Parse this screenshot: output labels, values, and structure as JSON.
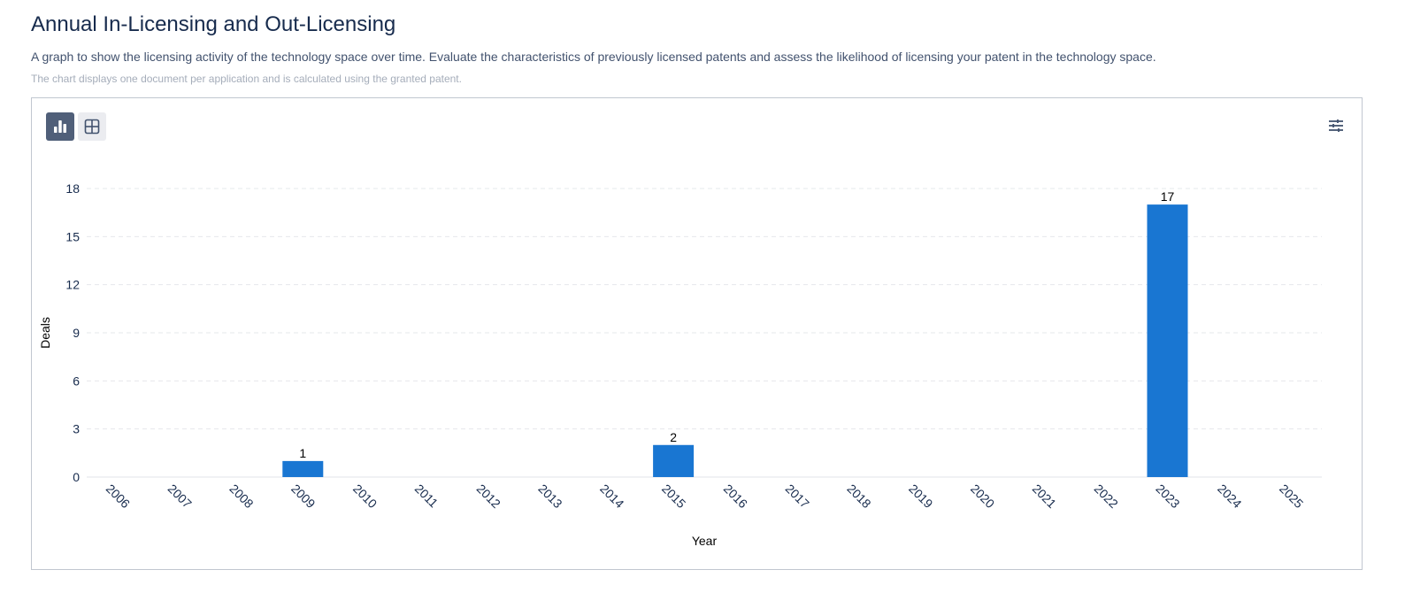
{
  "page": {
    "title": "Annual In-Licensing and Out-Licensing",
    "description": "A graph to show the licensing activity of the technology space over time. Evaluate the characteristics of previously licensed patents and assess the likelihood of licensing your patent in the technology space.",
    "note": "The chart displays one document per application and is calculated using the granted patent."
  },
  "toolbar": {
    "chart_view_icon": "bar-chart-icon",
    "table_view_icon": "table-grid-icon",
    "settings_icon": "sliders-icon",
    "active_view": "chart"
  },
  "colors": {
    "bar": "#1976d2",
    "grid": "#e6e8eb",
    "active_toggle": "#505f79",
    "inactive_toggle": "#ebecf0"
  },
  "chart_data": {
    "type": "bar",
    "categories": [
      "2006",
      "2007",
      "2008",
      "2009",
      "2010",
      "2011",
      "2012",
      "2013",
      "2014",
      "2015",
      "2016",
      "2017",
      "2018",
      "2019",
      "2020",
      "2021",
      "2022",
      "2023",
      "2024",
      "2025"
    ],
    "values": [
      0,
      0,
      0,
      1,
      0,
      0,
      0,
      0,
      0,
      2,
      0,
      0,
      0,
      0,
      0,
      0,
      0,
      17,
      0,
      0
    ],
    "data_labels_shown_for_nonzero": true,
    "xlabel": "Year",
    "ylabel": "Deals",
    "ylim": [
      0,
      18
    ],
    "yticks": [
      0,
      3,
      6,
      9,
      12,
      15,
      18
    ],
    "grid": true,
    "legend": "none"
  }
}
